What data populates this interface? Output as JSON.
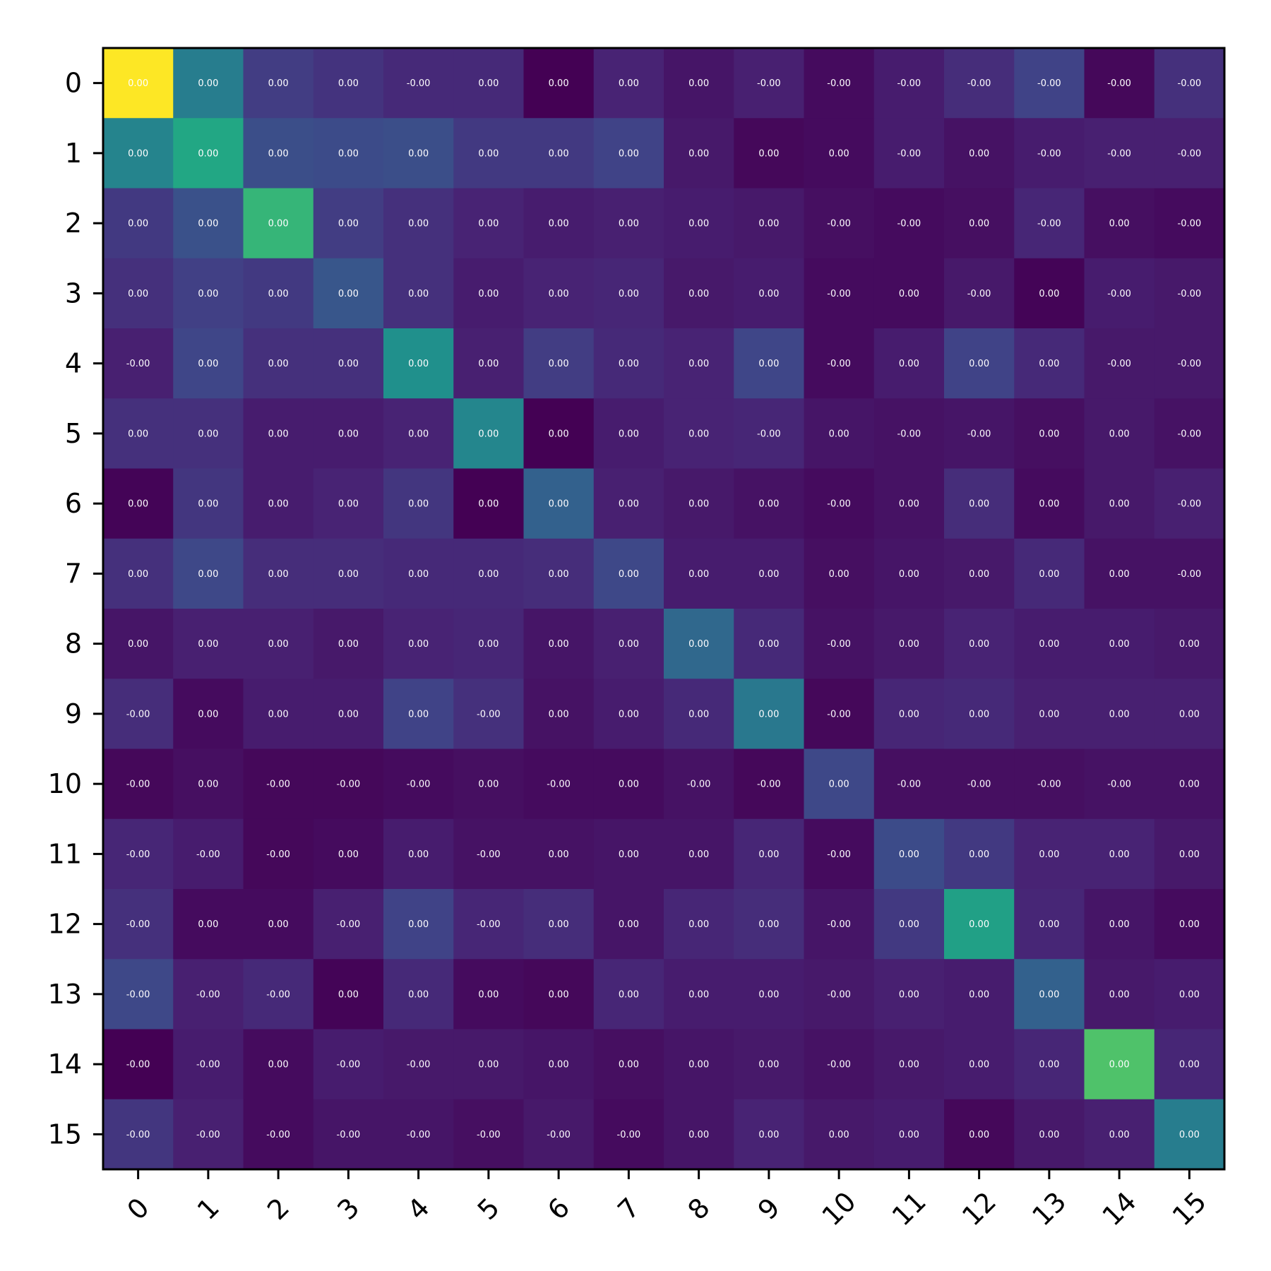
{
  "chart_data": {
    "type": "heatmap",
    "colormap": "viridis",
    "x_ticks": [
      "0",
      "1",
      "2",
      "3",
      "4",
      "5",
      "6",
      "7",
      "8",
      "9",
      "10",
      "11",
      "12",
      "13",
      "14",
      "15"
    ],
    "y_ticks": [
      "0",
      "1",
      "2",
      "3",
      "4",
      "5",
      "6",
      "7",
      "8",
      "9",
      "10",
      "11",
      "12",
      "13",
      "14",
      "15"
    ],
    "x_tick_rotation": 45,
    "color_range": [
      0,
      1
    ],
    "intensity": [
      [
        1.0,
        0.42,
        0.18,
        0.15,
        0.12,
        0.12,
        0.0,
        0.1,
        0.06,
        0.09,
        0.03,
        0.08,
        0.13,
        0.2,
        0.02,
        0.14
      ],
      [
        0.45,
        0.6,
        0.24,
        0.23,
        0.24,
        0.17,
        0.17,
        0.2,
        0.07,
        0.02,
        0.03,
        0.08,
        0.05,
        0.08,
        0.09,
        0.09
      ],
      [
        0.17,
        0.25,
        0.66,
        0.18,
        0.14,
        0.1,
        0.08,
        0.09,
        0.08,
        0.07,
        0.04,
        0.03,
        0.04,
        0.11,
        0.04,
        0.03
      ],
      [
        0.14,
        0.19,
        0.17,
        0.27,
        0.14,
        0.08,
        0.1,
        0.11,
        0.07,
        0.08,
        0.03,
        0.03,
        0.07,
        0.01,
        0.08,
        0.07
      ],
      [
        0.09,
        0.21,
        0.14,
        0.14,
        0.5,
        0.09,
        0.18,
        0.12,
        0.1,
        0.21,
        0.03,
        0.08,
        0.2,
        0.12,
        0.07,
        0.07
      ],
      [
        0.14,
        0.14,
        0.08,
        0.08,
        0.1,
        0.46,
        0.0,
        0.08,
        0.1,
        0.11,
        0.06,
        0.05,
        0.06,
        0.04,
        0.07,
        0.05
      ],
      [
        0.01,
        0.16,
        0.08,
        0.1,
        0.16,
        0.0,
        0.31,
        0.09,
        0.07,
        0.05,
        0.03,
        0.05,
        0.13,
        0.03,
        0.07,
        0.09
      ],
      [
        0.14,
        0.22,
        0.13,
        0.13,
        0.12,
        0.12,
        0.13,
        0.22,
        0.08,
        0.08,
        0.04,
        0.06,
        0.07,
        0.12,
        0.05,
        0.05
      ],
      [
        0.06,
        0.09,
        0.09,
        0.07,
        0.1,
        0.11,
        0.06,
        0.09,
        0.34,
        0.12,
        0.05,
        0.07,
        0.1,
        0.08,
        0.08,
        0.07
      ],
      [
        0.13,
        0.03,
        0.08,
        0.08,
        0.2,
        0.14,
        0.05,
        0.08,
        0.12,
        0.4,
        0.02,
        0.11,
        0.12,
        0.09,
        0.09,
        0.09
      ],
      [
        0.02,
        0.04,
        0.02,
        0.02,
        0.03,
        0.04,
        0.03,
        0.03,
        0.05,
        0.02,
        0.22,
        0.04,
        0.04,
        0.04,
        0.05,
        0.05
      ],
      [
        0.11,
        0.08,
        0.02,
        0.03,
        0.08,
        0.05,
        0.05,
        0.06,
        0.06,
        0.11,
        0.03,
        0.23,
        0.17,
        0.1,
        0.1,
        0.07
      ],
      [
        0.14,
        0.03,
        0.03,
        0.09,
        0.2,
        0.11,
        0.13,
        0.06,
        0.11,
        0.13,
        0.06,
        0.17,
        0.57,
        0.11,
        0.06,
        0.03
      ],
      [
        0.22,
        0.09,
        0.12,
        0.01,
        0.12,
        0.03,
        0.02,
        0.11,
        0.08,
        0.08,
        0.07,
        0.09,
        0.08,
        0.31,
        0.07,
        0.08
      ],
      [
        0.0,
        0.08,
        0.03,
        0.08,
        0.07,
        0.07,
        0.06,
        0.04,
        0.06,
        0.07,
        0.05,
        0.07,
        0.08,
        0.11,
        0.72,
        0.11
      ],
      [
        0.16,
        0.09,
        0.03,
        0.06,
        0.06,
        0.04,
        0.07,
        0.03,
        0.06,
        0.1,
        0.07,
        0.08,
        0.02,
        0.07,
        0.09,
        0.42
      ]
    ],
    "cell_labels": [
      [
        "0.00",
        "0.00",
        "0.00",
        "0.00",
        "-0.00",
        "0.00",
        "0.00",
        "0.00",
        "0.00",
        "-0.00",
        "-0.00",
        "-0.00",
        "-0.00",
        "-0.00",
        "-0.00",
        "-0.00"
      ],
      [
        "0.00",
        "0.00",
        "0.00",
        "0.00",
        "0.00",
        "0.00",
        "0.00",
        "0.00",
        "0.00",
        "0.00",
        "0.00",
        "-0.00",
        "0.00",
        "-0.00",
        "-0.00",
        "-0.00"
      ],
      [
        "0.00",
        "0.00",
        "0.00",
        "0.00",
        "0.00",
        "0.00",
        "0.00",
        "0.00",
        "0.00",
        "0.00",
        "-0.00",
        "-0.00",
        "0.00",
        "-0.00",
        "0.00",
        "-0.00"
      ],
      [
        "0.00",
        "0.00",
        "0.00",
        "0.00",
        "0.00",
        "0.00",
        "0.00",
        "0.00",
        "0.00",
        "0.00",
        "-0.00",
        "0.00",
        "-0.00",
        "0.00",
        "-0.00",
        "-0.00"
      ],
      [
        "-0.00",
        "0.00",
        "0.00",
        "0.00",
        "0.00",
        "0.00",
        "0.00",
        "0.00",
        "0.00",
        "0.00",
        "-0.00",
        "0.00",
        "0.00",
        "0.00",
        "-0.00",
        "-0.00"
      ],
      [
        "0.00",
        "0.00",
        "0.00",
        "0.00",
        "0.00",
        "0.00",
        "0.00",
        "0.00",
        "0.00",
        "-0.00",
        "0.00",
        "-0.00",
        "-0.00",
        "0.00",
        "0.00",
        "-0.00"
      ],
      [
        "0.00",
        "0.00",
        "0.00",
        "0.00",
        "0.00",
        "0.00",
        "0.00",
        "0.00",
        "0.00",
        "0.00",
        "-0.00",
        "0.00",
        "0.00",
        "0.00",
        "0.00",
        "-0.00"
      ],
      [
        "0.00",
        "0.00",
        "0.00",
        "0.00",
        "0.00",
        "0.00",
        "0.00",
        "0.00",
        "0.00",
        "0.00",
        "0.00",
        "0.00",
        "0.00",
        "0.00",
        "0.00",
        "-0.00"
      ],
      [
        "0.00",
        "0.00",
        "0.00",
        "0.00",
        "0.00",
        "0.00",
        "0.00",
        "0.00",
        "0.00",
        "0.00",
        "-0.00",
        "0.00",
        "0.00",
        "0.00",
        "0.00",
        "0.00"
      ],
      [
        "-0.00",
        "0.00",
        "0.00",
        "0.00",
        "0.00",
        "-0.00",
        "0.00",
        "0.00",
        "0.00",
        "0.00",
        "-0.00",
        "0.00",
        "0.00",
        "0.00",
        "0.00",
        "0.00"
      ],
      [
        "-0.00",
        "0.00",
        "-0.00",
        "-0.00",
        "-0.00",
        "0.00",
        "-0.00",
        "0.00",
        "-0.00",
        "-0.00",
        "0.00",
        "-0.00",
        "-0.00",
        "-0.00",
        "-0.00",
        "0.00"
      ],
      [
        "-0.00",
        "-0.00",
        "-0.00",
        "0.00",
        "0.00",
        "-0.00",
        "0.00",
        "0.00",
        "0.00",
        "0.00",
        "-0.00",
        "0.00",
        "0.00",
        "0.00",
        "0.00",
        "0.00"
      ],
      [
        "-0.00",
        "0.00",
        "0.00",
        "-0.00",
        "0.00",
        "-0.00",
        "0.00",
        "0.00",
        "0.00",
        "0.00",
        "-0.00",
        "0.00",
        "0.00",
        "0.00",
        "0.00",
        "0.00"
      ],
      [
        "-0.00",
        "-0.00",
        "-0.00",
        "0.00",
        "0.00",
        "0.00",
        "0.00",
        "0.00",
        "0.00",
        "0.00",
        "-0.00",
        "0.00",
        "0.00",
        "0.00",
        "0.00",
        "0.00"
      ],
      [
        "-0.00",
        "-0.00",
        "0.00",
        "-0.00",
        "-0.00",
        "0.00",
        "0.00",
        "0.00",
        "0.00",
        "0.00",
        "-0.00",
        "0.00",
        "0.00",
        "0.00",
        "0.00",
        "0.00"
      ],
      [
        "-0.00",
        "-0.00",
        "-0.00",
        "-0.00",
        "-0.00",
        "-0.00",
        "-0.00",
        "-0.00",
        "0.00",
        "0.00",
        "0.00",
        "0.00",
        "0.00",
        "0.00",
        "0.00",
        "0.00"
      ]
    ]
  }
}
